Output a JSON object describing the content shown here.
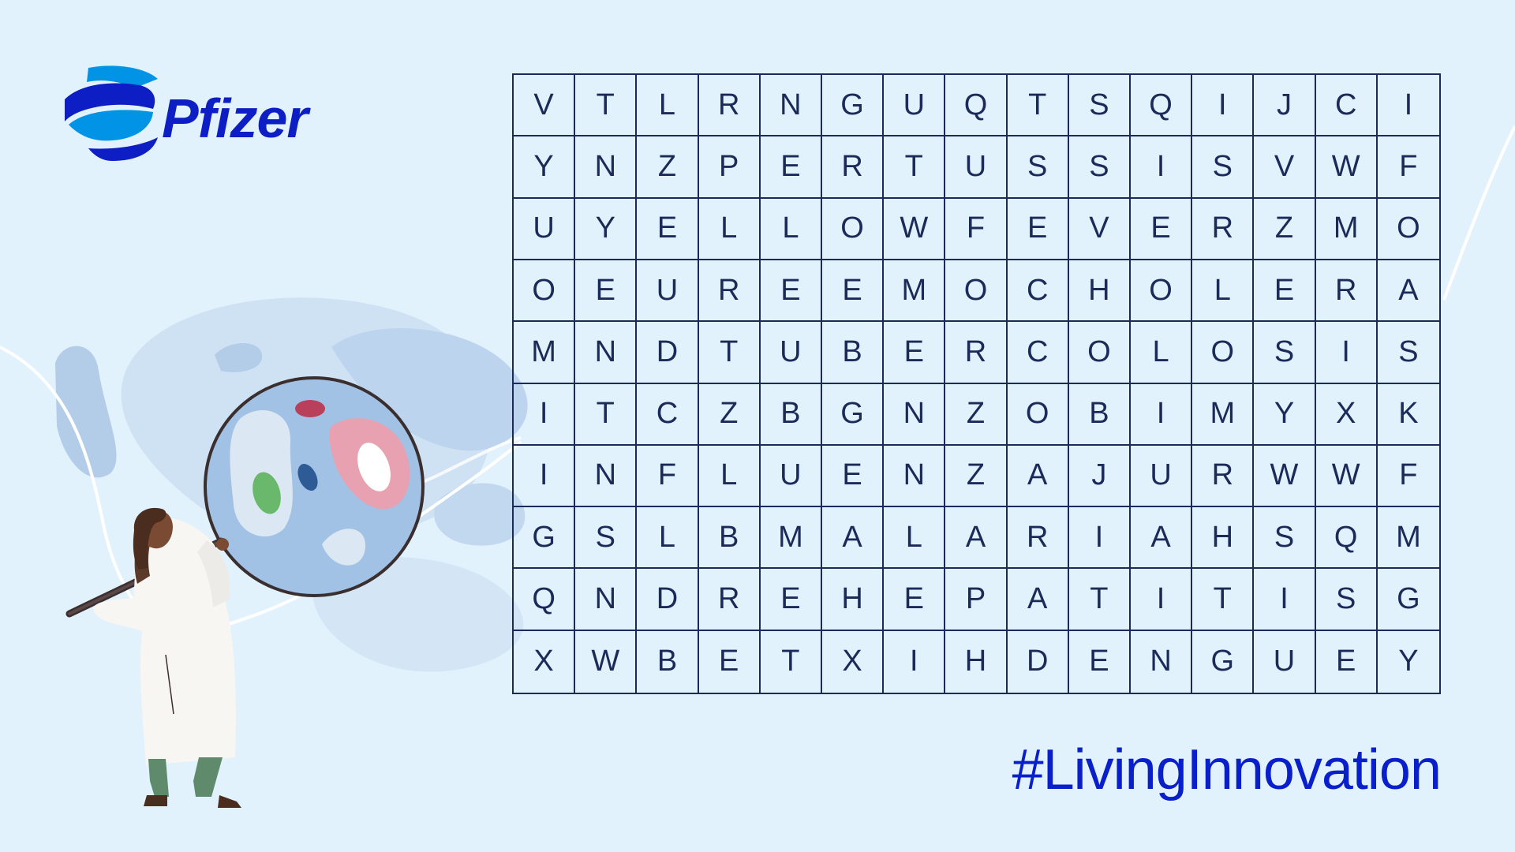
{
  "brand": {
    "name": "Pfizer",
    "color": "#0d1ec4",
    "icon": "pfizer-helix-logo-icon"
  },
  "hashtag": "#LivingInnovation",
  "puzzle": {
    "rows": [
      [
        "V",
        "T",
        "L",
        "R",
        "N",
        "G",
        "U",
        "Q",
        "T",
        "S",
        "Q",
        "I",
        "J",
        "C",
        "I"
      ],
      [
        "Y",
        "N",
        "Z",
        "P",
        "E",
        "R",
        "T",
        "U",
        "S",
        "S",
        "I",
        "S",
        "V",
        "W",
        "F"
      ],
      [
        "U",
        "Y",
        "E",
        "L",
        "L",
        "O",
        "W",
        "F",
        "E",
        "V",
        "E",
        "R",
        "Z",
        "M",
        "O"
      ],
      [
        "O",
        "E",
        "U",
        "R",
        "E",
        "E",
        "M",
        "O",
        "C",
        "H",
        "O",
        "L",
        "E",
        "R",
        "A"
      ],
      [
        "M",
        "N",
        "D",
        "T",
        "U",
        "B",
        "E",
        "R",
        "C",
        "O",
        "L",
        "O",
        "S",
        "I",
        "S"
      ],
      [
        "I",
        "T",
        "C",
        "Z",
        "B",
        "G",
        "N",
        "Z",
        "O",
        "B",
        "I",
        "M",
        "Y",
        "X",
        "K"
      ],
      [
        "I",
        "N",
        "F",
        "L",
        "U",
        "E",
        "N",
        "Z",
        "A",
        "J",
        "U",
        "R",
        "W",
        "W",
        "F"
      ],
      [
        "G",
        "S",
        "L",
        "B",
        "M",
        "A",
        "L",
        "A",
        "R",
        "I",
        "A",
        "H",
        "S",
        "Q",
        "M"
      ],
      [
        "Q",
        "N",
        "D",
        "R",
        "E",
        "H",
        "E",
        "P",
        "A",
        "T",
        "I",
        "T",
        "I",
        "S",
        "G"
      ],
      [
        "X",
        "W",
        "B",
        "E",
        "T",
        "X",
        "I",
        "H",
        "D",
        "E",
        "N",
        "G",
        "U",
        "E",
        "Y"
      ]
    ]
  },
  "colors": {
    "background": "#e2f2fd",
    "grid_line": "#1b2a58",
    "hashtag": "#0a1fcc"
  }
}
